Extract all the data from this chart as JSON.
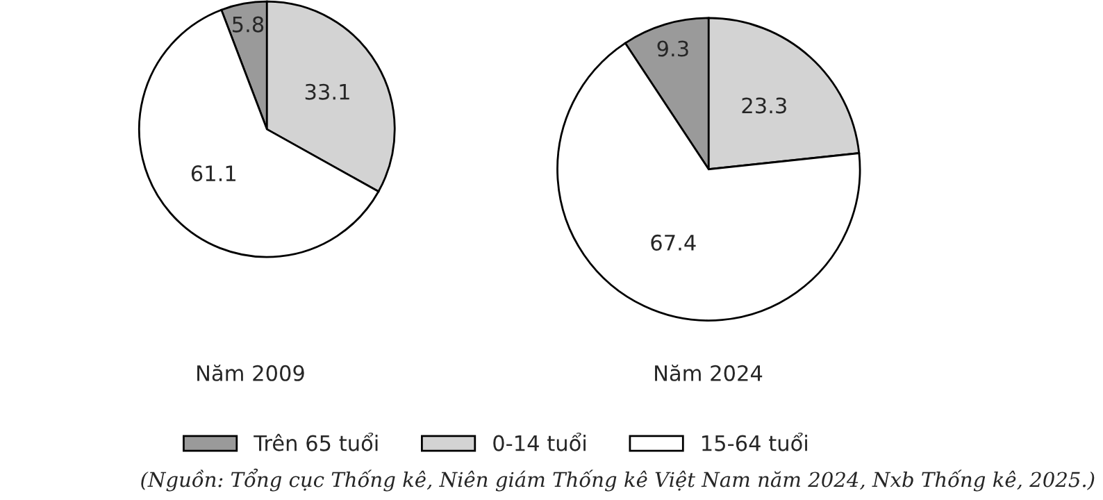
{
  "chart_data": [
    {
      "type": "pie",
      "title": "Năm 2009",
      "categories": [
        "Trên 65 tuổi",
        "0-14 tuổi",
        "15-64 tuổi"
      ],
      "values": [
        5.8,
        33.1,
        61.1
      ],
      "colors": [
        "#9a9a9a",
        "#d3d3d3",
        "#ffffff"
      ],
      "data_labels": true,
      "legend": "bottom"
    },
    {
      "type": "pie",
      "title": "Năm 2024",
      "values": [
        9.3,
        23.3,
        67.4
      ],
      "colors": [
        "#9a9a9a",
        "#d3d3d3",
        "#ffffff"
      ],
      "data_labels": true,
      "annotations": [
        "(Nguồn: Tổng cục Thống kê, Niên giám Thống kê Việt Nam năm 2024, Nxb Thống kê, 2025.)"
      ]
    }
  ]
}
